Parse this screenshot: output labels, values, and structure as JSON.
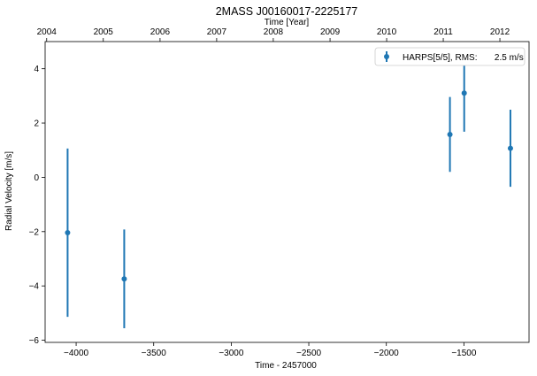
{
  "chart_data": {
    "type": "scatter",
    "title": "2MASS J00160017-2225177",
    "xlabel": "Time - 2457000",
    "ylabel": "Radial Velocity [m/s]",
    "top_xlabel": "Time [Year]",
    "xlim": [
      -4200,
      -1080
    ],
    "ylim": [
      -6.08,
      5.0
    ],
    "x_ticks": [
      -4000,
      -3500,
      -3000,
      -2500,
      -2000,
      -1500
    ],
    "x_tick_labels": [
      "−4000",
      "−3500",
      "−3000",
      "−2500",
      "−2000",
      "−1500"
    ],
    "y_ticks": [
      -6,
      -4,
      -2,
      0,
      2,
      4
    ],
    "y_tick_labels": [
      "−6",
      "−4",
      "−2",
      "0",
      "2",
      "4"
    ],
    "top_x_ticks": [
      -4190,
      -3825,
      -3459,
      -3094,
      -2729,
      -2363,
      -1998,
      -1633,
      -1268
    ],
    "top_x_tick_labels": [
      "2004",
      "2005",
      "2006",
      "2007",
      "2008",
      "2009",
      "2010",
      "2011",
      "2012"
    ],
    "grid": false,
    "legend_position": "top-right",
    "series": [
      {
        "name": "HARPS[5/5], RMS:       2.5 m/s",
        "color": "#1f77b4",
        "marker": "circle",
        "x": [
          -4055,
          -3690,
          -1590,
          -1498,
          -1200
        ],
        "y": [
          -2.04,
          -3.74,
          1.58,
          3.1,
          1.07
        ],
        "yerr": [
          3.1,
          1.82,
          1.38,
          1.42,
          1.42
        ]
      }
    ]
  }
}
